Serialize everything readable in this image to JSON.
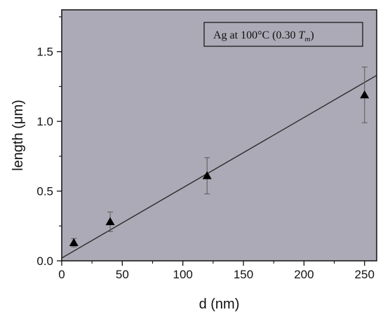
{
  "chart_data": {
    "type": "scatter",
    "xlabel": "d (nm)",
    "ylabel": "length (μm)",
    "xlim": [
      0,
      260
    ],
    "ylim": [
      0,
      1.8
    ],
    "xticks": [
      0,
      50,
      100,
      150,
      200,
      250
    ],
    "xtick_labels": [
      "0",
      "50",
      "100",
      "150",
      "200",
      "250"
    ],
    "yticks": [
      0.0,
      0.5,
      1.0,
      1.5
    ],
    "ytick_labels": [
      "0.0",
      "0.5",
      "1.0",
      "1.5"
    ],
    "grid": false,
    "legend_position": "top-right",
    "annotation": {
      "text_main": "Ag at 100°C (0.30 ",
      "text_var": "T",
      "text_sub": "m",
      "text_close": ")"
    },
    "series": [
      {
        "marker": "triangle",
        "color": "#000000",
        "x": [
          10,
          40,
          120,
          250
        ],
        "y": [
          0.13,
          0.28,
          0.61,
          1.19
        ],
        "y_err": [
          0.03,
          0.07,
          0.13,
          0.2
        ]
      }
    ],
    "fit_line": {
      "color": "#2b2b2b",
      "x": [
        0,
        260
      ],
      "y": [
        0.02,
        1.33
      ]
    },
    "colors": {
      "plot_background": "#abaab6",
      "axis": "#111111",
      "error_bar": "#666666"
    }
  }
}
